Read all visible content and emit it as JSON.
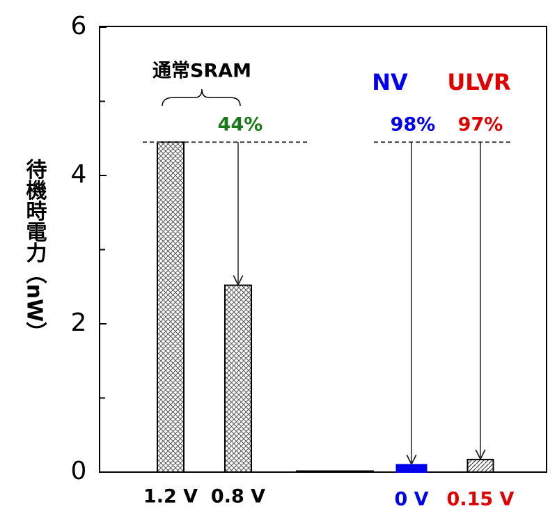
{
  "chart_data": {
    "type": "bar",
    "y_label": "待機時電力（nW）",
    "categories": [
      "1.2 V",
      "0.8 V",
      "0 V",
      "0.15 V"
    ],
    "values": [
      4.45,
      2.52,
      0.1,
      0.17
    ],
    "colors": [
      "#999999",
      "#999999",
      "#0000ee",
      "#999999"
    ],
    "bar_styles": [
      "crosshatch",
      "crosshatch",
      "solid",
      "hatch"
    ],
    "category_colors": [
      "#000000",
      "#000000",
      "#0000ee",
      "#e00000"
    ],
    "ylim": [
      0,
      6
    ],
    "yticks": [
      0,
      2,
      4,
      6
    ],
    "yminor": [
      1,
      3,
      5
    ],
    "annotations": [
      {
        "text": "通常SRAM",
        "color": "#000000"
      },
      {
        "text": "44%",
        "color": "#1a7a1a"
      },
      {
        "text": "NV",
        "color": "#0000ee"
      },
      {
        "text": "ULVR",
        "color": "#e00000"
      },
      {
        "text": "98%",
        "color": "#0000ee"
      },
      {
        "text": "97%",
        "color": "#e00000"
      }
    ]
  }
}
